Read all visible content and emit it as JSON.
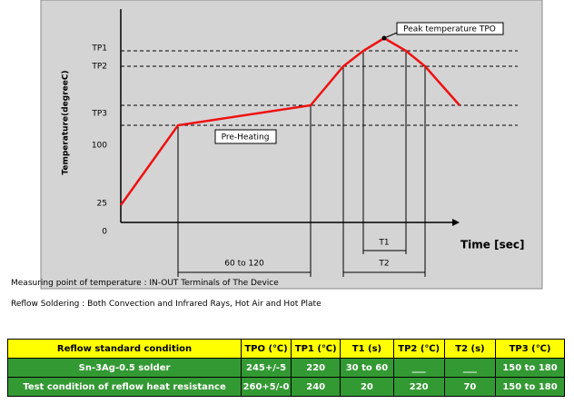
{
  "diagram": {
    "y_axis_title": "Temperature(degreeC)",
    "x_axis_title": "Time [sec]",
    "y_labels": [
      "TP1",
      "TP2",
      "TP3",
      "100",
      "25",
      "0"
    ],
    "peak_label": "Peak temperature TPO",
    "preheat_label": "Pre-Heating",
    "preheat_time": "60 to 120",
    "t1_label": "T1",
    "t2_label": "T2"
  },
  "notes": [
    "Measuring point of temperature : IN-OUT Terminals of The Device",
    "Reflow Soldering : Both Convection and Infrared Rays, Hot Air and Hot Plate"
  ],
  "table": {
    "header": [
      "Reflow standard condition",
      "TPO (℃)",
      "TP1 (℃)",
      "T1 (s)",
      "TP2 (℃)",
      "T2 (s)",
      "TP3 (℃)"
    ],
    "rows": [
      [
        "Sn-3Ag-0.5 solder",
        "245+/-5",
        "220",
        "30 to 60",
        "___",
        "___",
        "150 to 180"
      ],
      [
        "Test condition of reflow heat resistance",
        "260+5/-0",
        "240",
        "20",
        "220",
        "70",
        "150 to 180"
      ]
    ]
  }
}
